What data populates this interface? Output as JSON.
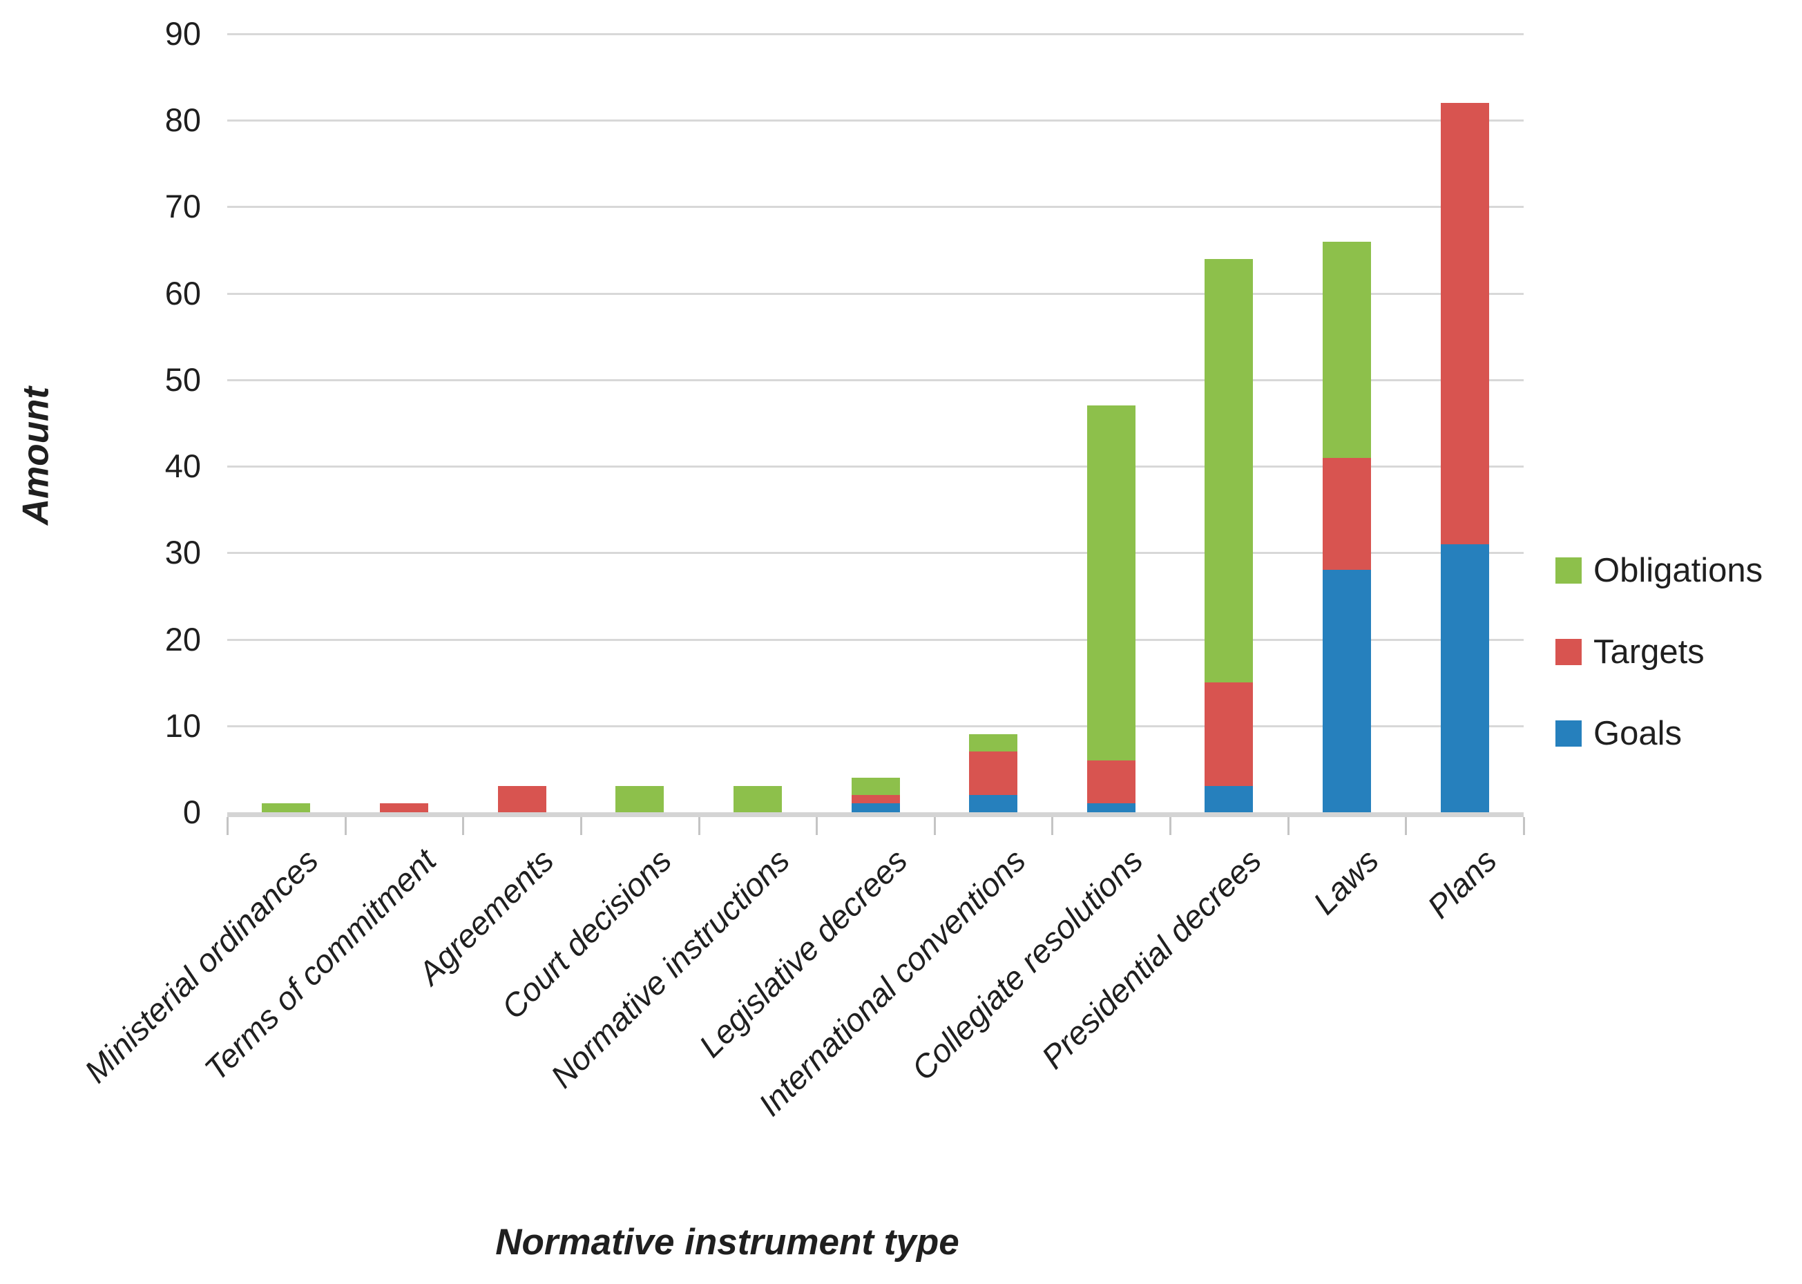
{
  "chart_data": {
    "type": "bar",
    "stacked": true,
    "orientation": "vertical",
    "xlabel": "Normative instrument type",
    "ylabel": "Amount",
    "ylim": [
      0,
      90
    ],
    "ytick_step": 10,
    "ytick_labels": [
      "0",
      "10",
      "20",
      "30",
      "40",
      "50",
      "60",
      "70",
      "80",
      "90"
    ],
    "grid": true,
    "legend_position": "right",
    "categories": [
      "Ministerial ordinances",
      "Terms of commitment",
      "Agreements",
      "Court decisions",
      "Normative instructions",
      "Legislative decrees",
      "International conventions",
      "Collegiate resolutions",
      "Presidential decrees",
      "Laws",
      "Plans"
    ],
    "series": [
      {
        "name": "Goals",
        "color": "#2680BD",
        "values": [
          0,
          0,
          0,
          0,
          0,
          1,
          2,
          1,
          3,
          28,
          31
        ]
      },
      {
        "name": "Targets",
        "color": "#D85450",
        "values": [
          0,
          1,
          3,
          0,
          0,
          1,
          5,
          5,
          12,
          13,
          51
        ]
      },
      {
        "name": "Obligations",
        "color": "#8DC04B",
        "values": [
          1,
          0,
          0,
          3,
          3,
          2,
          2,
          41,
          49,
          25,
          0
        ]
      }
    ],
    "totals": [
      1,
      1,
      3,
      3,
      3,
      4,
      9,
      47,
      64,
      66,
      82
    ],
    "legend_order": [
      "Obligations",
      "Targets",
      "Goals"
    ]
  },
  "colors": {
    "goals_blue": "#2680BD",
    "targets_red": "#D85450",
    "obligations_green": "#8DC04B",
    "gridline_gray": "#d8d8d8",
    "text": "#1f1f1f"
  }
}
